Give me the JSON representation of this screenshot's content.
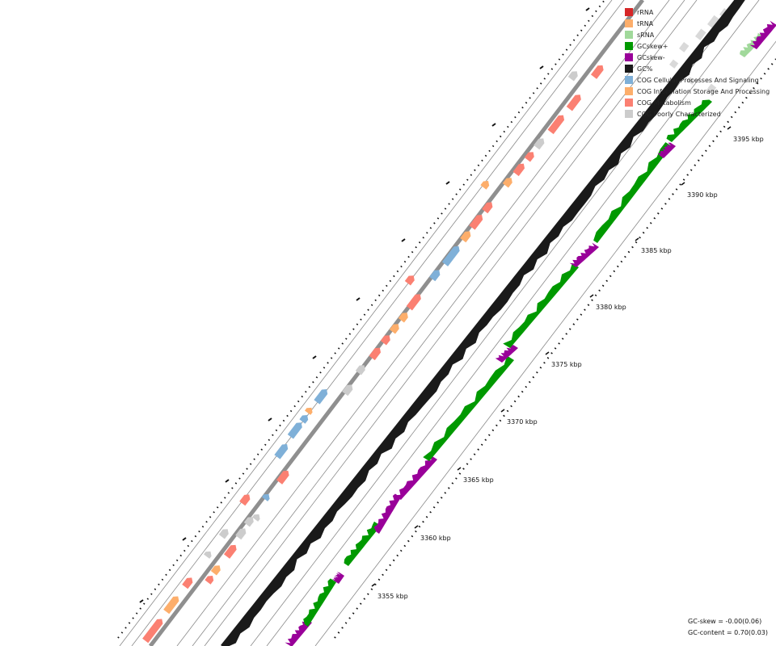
{
  "legend": [
    {
      "label": "rRNA",
      "color": "#d62728"
    },
    {
      "label": "tRNA",
      "color": "#fdae6b"
    },
    {
      "label": "sRNA",
      "color": "#a1d99b"
    },
    {
      "label": "GCskew+",
      "color": "#009900"
    },
    {
      "label": "GCskew-",
      "color": "#990099"
    },
    {
      "label": "GC%",
      "color": "#1a1a1a"
    },
    {
      "label": "COG Cellular Processes And Signaling",
      "color": "#7fb0d8"
    },
    {
      "label": "COG Information Storage And Processing",
      "color": "#fdae6b"
    },
    {
      "label": "COG Metabolism",
      "color": "#fb8072"
    },
    {
      "label": "COG Poorly Characterized",
      "color": "#cccccc"
    }
  ],
  "scale_labels": [
    "3355 kbp",
    "3360 kbp",
    "3365 kbp",
    "3370 kbp",
    "3375 kbp",
    "3380 kbp",
    "3385 kbp",
    "3390 kbp",
    "3395 kbp"
  ],
  "stats": {
    "gc_skew": "GC-skew = -0.00(0.06)",
    "gc_content": "GC-content = 0.70(0.03)"
  }
}
